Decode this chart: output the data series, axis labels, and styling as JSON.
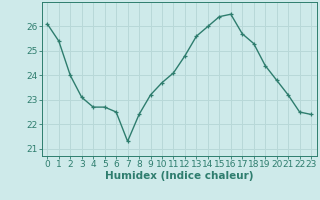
{
  "x": [
    0,
    1,
    2,
    3,
    4,
    5,
    6,
    7,
    8,
    9,
    10,
    11,
    12,
    13,
    14,
    15,
    16,
    17,
    18,
    19,
    20,
    21,
    22,
    23
  ],
  "y": [
    26.1,
    25.4,
    24.0,
    23.1,
    22.7,
    22.7,
    22.5,
    21.3,
    22.4,
    23.2,
    23.7,
    24.1,
    24.8,
    25.6,
    26.0,
    26.4,
    26.5,
    25.7,
    25.3,
    24.4,
    23.8,
    23.2,
    22.5,
    22.4
  ],
  "line_color": "#2e7d6e",
  "marker": "+",
  "marker_size": 3,
  "bg_color": "#ceeaea",
  "grid_color": "#b8d8d8",
  "xlabel": "Humidex (Indice chaleur)",
  "xlim": [
    -0.5,
    23.5
  ],
  "ylim": [
    20.7,
    27.0
  ],
  "yticks": [
    21,
    22,
    23,
    24,
    25,
    26
  ],
  "xtick_labels": [
    "0",
    "1",
    "2",
    "3",
    "4",
    "5",
    "6",
    "7",
    "8",
    "9",
    "10",
    "11",
    "12",
    "13",
    "14",
    "15",
    "16",
    "17",
    "18",
    "19",
    "20",
    "21",
    "22",
    "23"
  ],
  "xlabel_fontsize": 7.5,
  "tick_fontsize": 6.5,
  "line_width": 1.0
}
